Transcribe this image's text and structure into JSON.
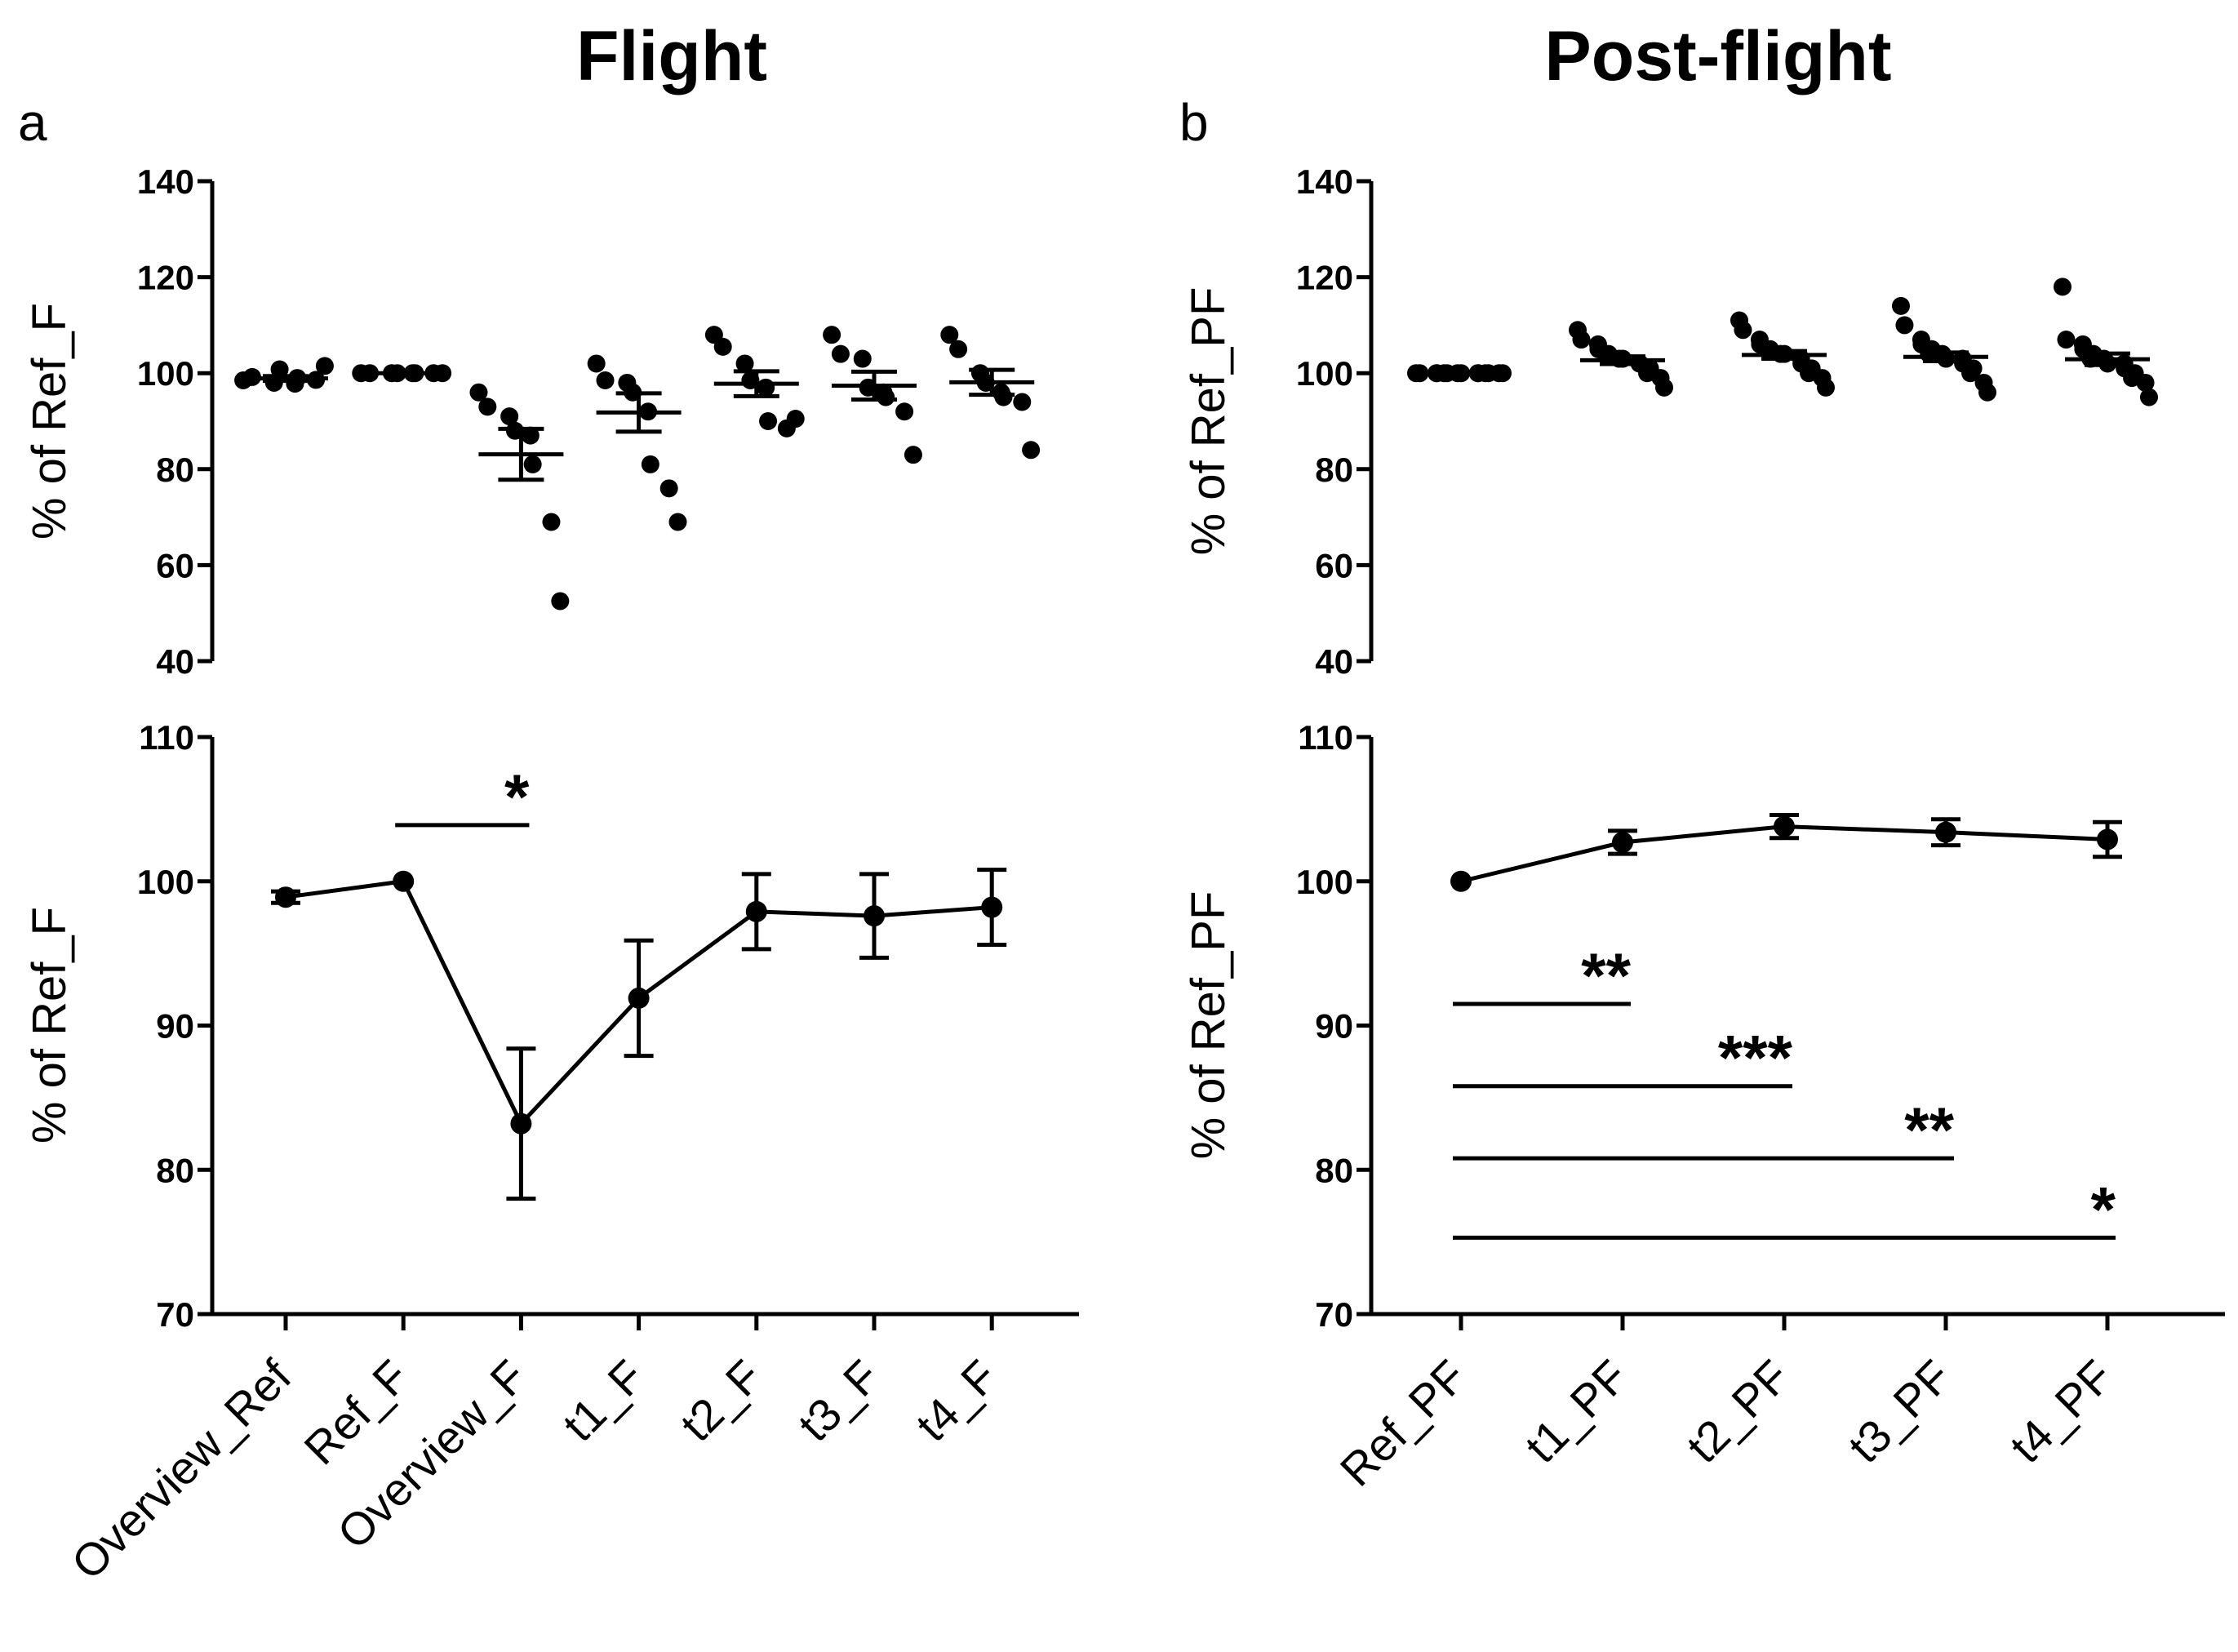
{
  "chart_data": [
    {
      "id": "a_top",
      "type": "scatter",
      "panel": "a",
      "title": "Flight",
      "ylabel": "% of Ref_F",
      "ylim": [
        40,
        140
      ],
      "yticks": [
        40,
        60,
        80,
        100,
        120,
        140
      ],
      "categories": [
        "Overview_Ref",
        "Ref_F",
        "Overview_F",
        "t1_F",
        "t2_F",
        "t3_F",
        "t4_F"
      ],
      "points": [
        [
          98.5,
          99.2,
          98.0,
          100.8,
          97.8,
          99.0,
          98.6,
          101.5
        ],
        [
          100,
          100,
          100,
          100,
          100,
          100,
          100,
          100
        ],
        [
          96,
          93,
          91,
          88,
          87,
          81,
          69,
          52.5
        ],
        [
          102,
          98.5,
          98,
          96,
          92,
          81,
          76,
          69
        ],
        [
          108,
          105.5,
          102,
          98.5,
          97,
          90,
          88.5,
          90.5
        ],
        [
          108,
          104,
          103,
          97,
          96,
          95,
          92,
          83
        ],
        [
          108,
          105,
          100,
          98,
          96,
          95,
          94,
          84
        ]
      ],
      "mean": [
        98.9,
        100,
        83.1,
        91.8,
        97.8,
        97.4,
        98.1
      ],
      "sem": [
        0.5,
        0,
        5.3,
        4.0,
        2.6,
        2.9,
        2.6
      ]
    },
    {
      "id": "a_bottom",
      "type": "line",
      "panel": "a",
      "ylabel": "% of Ref_F",
      "ylim": [
        70,
        110
      ],
      "yticks": [
        70,
        80,
        90,
        100,
        110
      ],
      "categories": [
        "Overview_Ref",
        "Ref_F",
        "Overview_F",
        "t1_F",
        "t2_F",
        "t3_F",
        "t4_F"
      ],
      "mean": [
        98.9,
        100,
        83.2,
        91.9,
        97.9,
        97.6,
        98.2
      ],
      "sem": [
        0.4,
        0,
        5.2,
        4.0,
        2.6,
        2.9,
        2.6
      ],
      "significance": [
        {
          "from": 1,
          "to": 2,
          "label": "*",
          "y": 103.9
        }
      ]
    },
    {
      "id": "b_top",
      "type": "scatter",
      "panel": "b",
      "title": "Post-flight",
      "ylabel": "% of Ref_PF",
      "ylim": [
        40,
        140
      ],
      "yticks": [
        40,
        60,
        80,
        100,
        120,
        140
      ],
      "categories": [
        "Ref_PF",
        "t1_PF",
        "t2_PF",
        "t3_PF",
        "t4_PF"
      ],
      "points": [
        [
          100,
          100,
          100,
          100,
          100,
          100,
          100,
          100,
          100,
          100,
          100,
          100,
          100,
          100
        ],
        [
          109,
          107,
          106,
          105,
          104,
          104,
          103,
          103,
          102,
          102,
          101,
          100,
          99,
          97
        ],
        [
          111,
          109,
          107,
          106,
          105,
          105,
          104,
          104,
          103,
          102,
          101,
          100,
          99,
          97
        ],
        [
          114,
          110,
          107,
          106,
          105,
          104,
          104,
          103,
          103,
          102,
          101,
          100,
          98,
          96
        ],
        [
          118,
          107,
          106,
          105,
          104,
          103,
          103,
          102,
          102,
          101,
          100,
          99,
          98,
          95
        ]
      ],
      "mean": [
        100,
        102.7,
        103.8,
        103.4,
        102.9
      ],
      "sem": [
        0,
        0.8,
        0.8,
        0.9,
        1.2
      ]
    },
    {
      "id": "b_bottom",
      "type": "line",
      "panel": "b",
      "ylabel": "% of Ref_PF",
      "ylim": [
        70,
        110
      ],
      "yticks": [
        70,
        80,
        90,
        100,
        110
      ],
      "categories": [
        "Ref_PF",
        "t1_PF",
        "t2_PF",
        "t3_PF",
        "t4_PF"
      ],
      "mean": [
        100,
        102.7,
        103.8,
        103.4,
        102.9
      ],
      "sem": [
        0,
        0.8,
        0.8,
        0.9,
        1.2
      ],
      "significance": [
        {
          "from": 0,
          "to": 1,
          "label": "**",
          "y": 91.5
        },
        {
          "from": 0,
          "to": 2,
          "label": "***",
          "y": 85.8
        },
        {
          "from": 0,
          "to": 3,
          "label": "**",
          "y": 80.8
        },
        {
          "from": 0,
          "to": 4,
          "label": "*",
          "y": 75.3
        }
      ]
    }
  ],
  "panels": {
    "a": {
      "label": "a",
      "title": "Flight"
    },
    "b": {
      "label": "b",
      "title": "Post-flight"
    }
  }
}
